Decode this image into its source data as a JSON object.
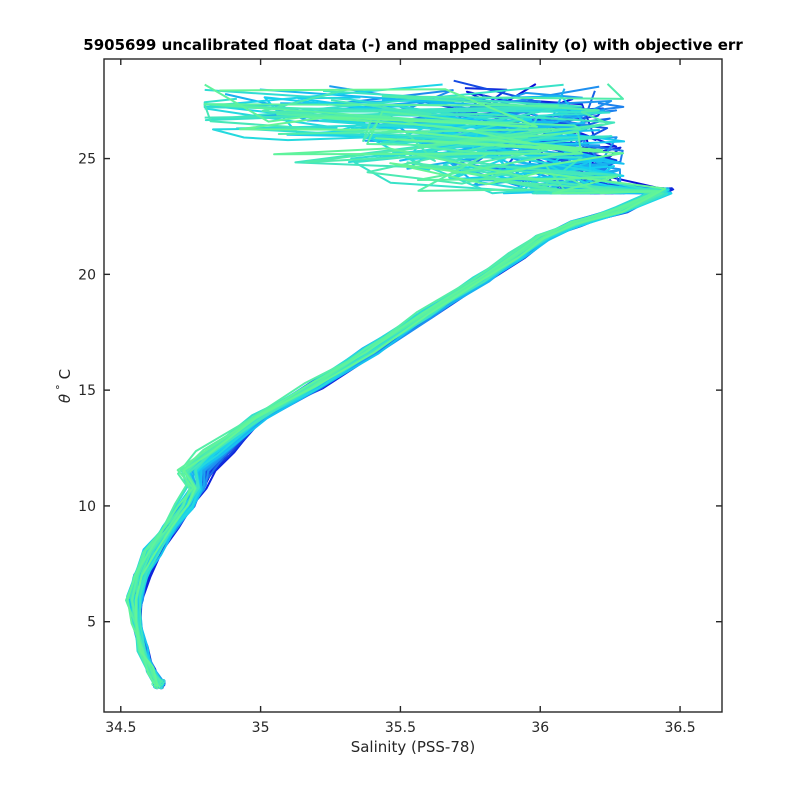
{
  "chart_data": {
    "type": "line",
    "title": "5905699 uncalibrated float data (-) and mapped salinity (o) with objective err",
    "xlabel": "Salinity (PSS-78)",
    "ylabel_symbol": "θ",
    "ylabel_degree": "°",
    "ylabel_unit": "C",
    "xlim": [
      34.44,
      36.65
    ],
    "ylim": [
      1.1,
      29.3
    ],
    "xticks": [
      34.5,
      35,
      35.5,
      36,
      36.5
    ],
    "xtick_labels": [
      "34.5",
      "35",
      "35.5",
      "36",
      "36.5"
    ],
    "yticks": [
      5,
      10,
      15,
      20,
      25
    ],
    "ytick_labels": [
      "5",
      "10",
      "15",
      "20",
      "25"
    ],
    "grid": false,
    "box": true,
    "colormap": "dark blue to light green by profile number",
    "colors": {
      "first_profile": "#0a0ad6",
      "middle_profiles": "#1e8cf0",
      "later_profiles": "#14d2f0",
      "last_profile": "#64f596",
      "axes": "#262626"
    },
    "profile_count": 50,
    "mean_profile": {
      "x": [
        34.64,
        34.61,
        34.58,
        34.56,
        34.56,
        34.58,
        34.62,
        34.68,
        34.74,
        34.78,
        34.78,
        34.85,
        35.0,
        35.2,
        35.4,
        35.6,
        35.8,
        35.92,
        36.02,
        36.14,
        36.3,
        36.45
      ],
      "y": [
        2.3,
        2.9,
        3.8,
        5.0,
        6.0,
        7.0,
        8.0,
        9.0,
        10.0,
        10.8,
        11.5,
        12.3,
        13.8,
        15.2,
        16.7,
        18.3,
        19.8,
        20.8,
        21.6,
        22.2,
        22.8,
        23.6
      ]
    },
    "surface_layer_salinity_range": [
      34.8,
      36.55
    ],
    "surface_layer_theta_range": [
      23.5,
      28.5
    ]
  }
}
